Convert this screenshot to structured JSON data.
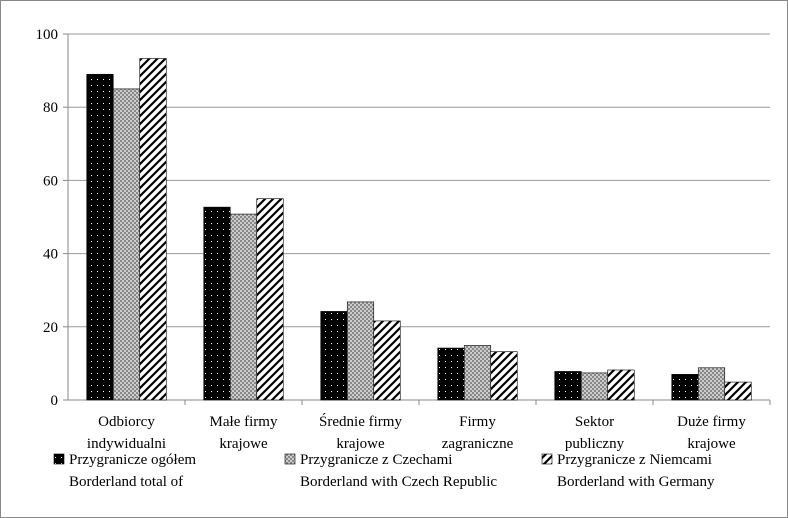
{
  "chart_data": {
    "type": "bar",
    "categories": [
      "Odbiorcy\nindywidualni",
      "Małe firmy\nkrajowe",
      "Średnie firmy\nkrajowe",
      "Firmy\nzagraniczne",
      "Sektor\npubliczny",
      "Duże firmy\nkrajowe"
    ],
    "series": [
      {
        "name": "Przygranicze ogółem\nBorderland total of",
        "color": "#000000",
        "pattern": "dots",
        "values": [
          89,
          52.7,
          24.2,
          14.2,
          7.8,
          7.0
        ]
      },
      {
        "name": "Przygranicze z Czechami\nBorderland with Czech Republic",
        "color": "#888888",
        "pattern": "checker",
        "values": [
          85,
          50.8,
          26.8,
          14.9,
          7.4,
          8.8
        ]
      },
      {
        "name": "Przygranicze z Niemcami\nBorderland with Germany",
        "color": "#ffffff",
        "pattern": "hatch",
        "values": [
          93.3,
          55,
          21.6,
          13.2,
          8.2,
          4.9
        ]
      }
    ],
    "ylim": [
      0,
      100
    ],
    "yticks": [
      0,
      20,
      40,
      60,
      80,
      100
    ],
    "grid": true,
    "legend": "bottom"
  }
}
